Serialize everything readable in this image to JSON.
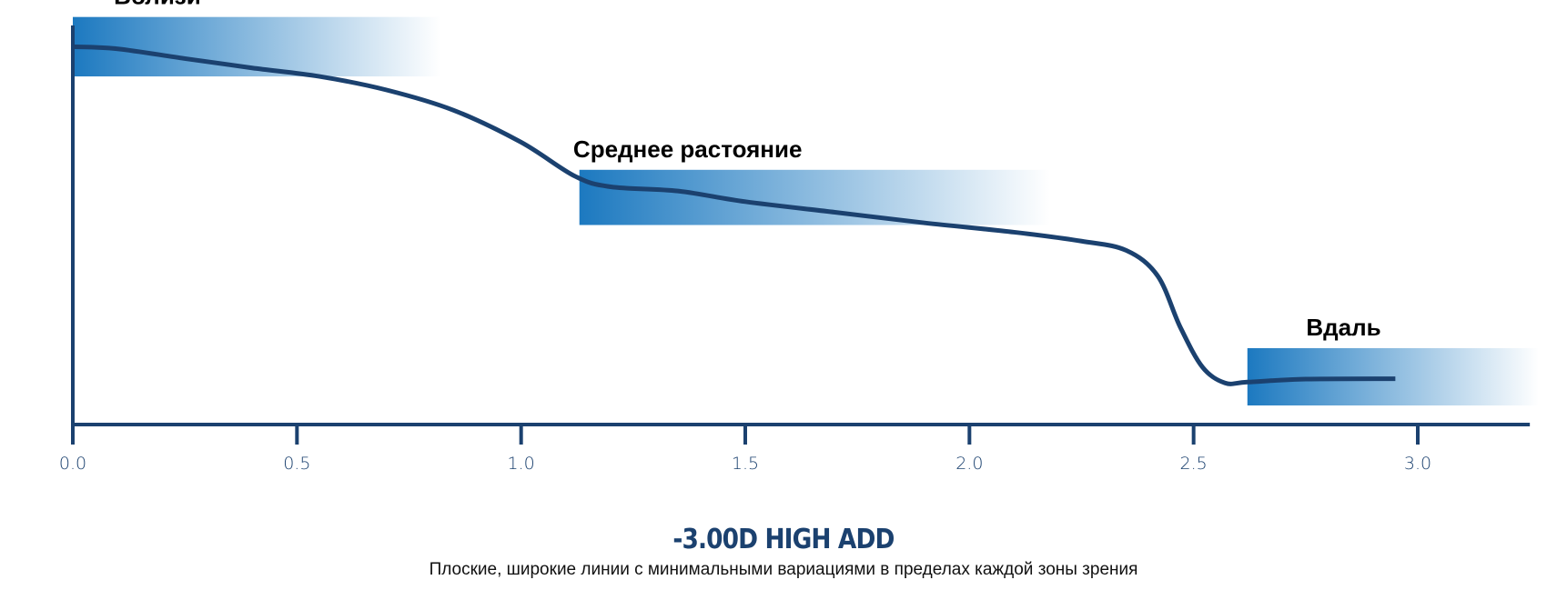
{
  "chart_data": {
    "type": "line",
    "title": "-3.00D HIGH ADD",
    "subtitle": "Плоские, широкие линии с минимальными вариациями в пределах каждой зоны зрения",
    "xlabel": "",
    "ylabel": "",
    "xlim": [
      0,
      3.25
    ],
    "ylim": [
      0,
      1
    ],
    "grid": false,
    "x_ticks": [
      0.0,
      0.5,
      1.0,
      1.5,
      2.0,
      2.5,
      3.0
    ],
    "x_tick_labels": [
      "0.0",
      "0.5",
      "1.0",
      "1.5",
      "2.0",
      "2.5",
      "3.0"
    ],
    "series": [
      {
        "points": [
          [
            0.0,
            0.89
          ],
          [
            0.1,
            0.885
          ],
          [
            0.25,
            0.862
          ],
          [
            0.4,
            0.84
          ],
          [
            0.55,
            0.82
          ],
          [
            0.7,
            0.788
          ],
          [
            0.85,
            0.74
          ],
          [
            1.0,
            0.665
          ],
          [
            1.12,
            0.585
          ],
          [
            1.2,
            0.56
          ],
          [
            1.35,
            0.55
          ],
          [
            1.5,
            0.525
          ],
          [
            1.7,
            0.5
          ],
          [
            1.9,
            0.475
          ],
          [
            2.1,
            0.453
          ],
          [
            2.25,
            0.432
          ],
          [
            2.35,
            0.41
          ],
          [
            2.42,
            0.35
          ],
          [
            2.47,
            0.23
          ],
          [
            2.52,
            0.135
          ],
          [
            2.57,
            0.098
          ],
          [
            2.62,
            0.1
          ],
          [
            2.75,
            0.107
          ],
          [
            2.95,
            0.108
          ]
        ]
      }
    ],
    "zones": [
      {
        "label": "Вблизи",
        "x_start": 0.0,
        "x_end": 0.82,
        "y_top": 0.96,
        "y_bottom": 0.82
      },
      {
        "label": "Среднее растояние",
        "x_start": 1.13,
        "x_end": 2.18,
        "y_top": 0.6,
        "y_bottom": 0.47
      },
      {
        "label": "Вдаль",
        "x_start": 2.62,
        "x_end": 3.27,
        "y_top": 0.18,
        "y_bottom": 0.045
      }
    ],
    "colors": {
      "line": "#1b416f",
      "axis": "#1b416f",
      "zone_gradient_start": "#1c79c0",
      "title": "#1b416f"
    }
  }
}
